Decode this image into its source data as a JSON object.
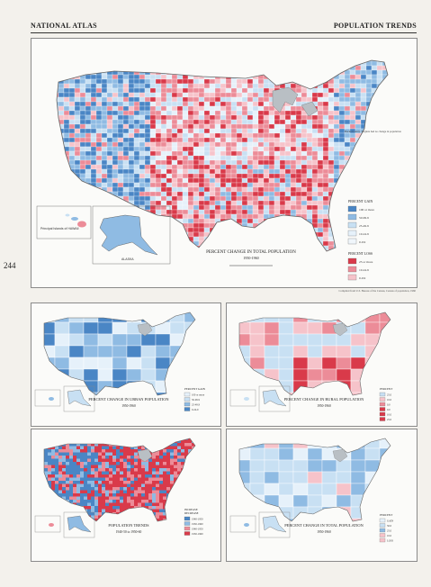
{
  "header": {
    "left": "NATIONAL ATLAS",
    "right": "POPULATION TRENDS"
  },
  "page_number": "244",
  "colors": {
    "blue_dark": "#4a86c5",
    "blue_mid": "#8fbbe3",
    "blue_light": "#c8e0f3",
    "blue_pale": "#e6f1fa",
    "red_dark": "#d93a4a",
    "red_mid": "#ec8c98",
    "red_light": "#f6c3ca",
    "red_pale": "#fbe3e6",
    "water": "#b9bfc4",
    "land_bg": "#fbfbf9"
  },
  "main_map": {
    "title": "PERCENT CHANGE IN TOTAL POPULATION",
    "years": "1950-1960",
    "legend_gain_title": "PERCENT GAIN",
    "legend_gain_levels": [
      "100 or more",
      "50-99.9",
      "25-49.9",
      "10-24.9",
      "0-9.9"
    ],
    "legend_loss_title": "PERCENT LOSS",
    "legend_loss_levels": [
      "25 or more",
      "10-24.9",
      "0-9.9"
    ],
    "hawaii_label": "Principal Islands of HAWAII",
    "alaska_label": "ALASKA",
    "note": "Bucks County, Virginia had no change in population"
  },
  "credit": "Compiled from U.S. Bureau of the Census, Census of population, 1960",
  "small_maps": [
    {
      "id": "urban",
      "title": "PERCENT CHANGE IN URBAN POPULATION",
      "years": "1950-1960",
      "legend_title": "PERCENT GAIN",
      "legend_levels": [
        "100 or more",
        "50-99.9",
        "25-49.9",
        "0-24.9"
      ],
      "palette": [
        "#e6f1fa",
        "#c8e0f3",
        "#8fbbe3",
        "#4a86c5"
      ]
    },
    {
      "id": "rural",
      "title": "PERCENT CHANGE IN RURAL POPULATION",
      "years": "1950-1960",
      "legend_title": "PERCENT",
      "legend_levels_gain": [
        "25.0",
        "10.0",
        "0.0"
      ],
      "legend_levels_loss": [
        "0.0",
        "10.0",
        "25.0"
      ],
      "palette": [
        "#c8e0f3",
        "#f6c3ca",
        "#ec8c98",
        "#d93a4a"
      ]
    },
    {
      "id": "trends",
      "title": "POPULATION TRENDS",
      "years": "1940-50 to 1950-60",
      "legend_title_increase": "INCREASE",
      "legend_title_decrease": "DECREASE",
      "legend_levels": [
        "1940-1950",
        "1950-1960",
        "1940-1950",
        "1950-1960"
      ],
      "palette": [
        "#4a86c5",
        "#8fbbe3",
        "#ec8c98",
        "#d93a4a"
      ]
    },
    {
      "id": "total",
      "title": "PERCENT CHANGE IN TOTAL POPULATION",
      "years": "1950-1960",
      "legend_title": "PERCENT",
      "legend_levels_gain": [
        "GAIN",
        "50.0",
        "25.0",
        "10.0"
      ],
      "legend_levels_loss": [
        "LOSS"
      ],
      "palette": [
        "#e6f1fa",
        "#c8e0f3",
        "#8fbbe3",
        "#f6c3ca"
      ]
    }
  ]
}
